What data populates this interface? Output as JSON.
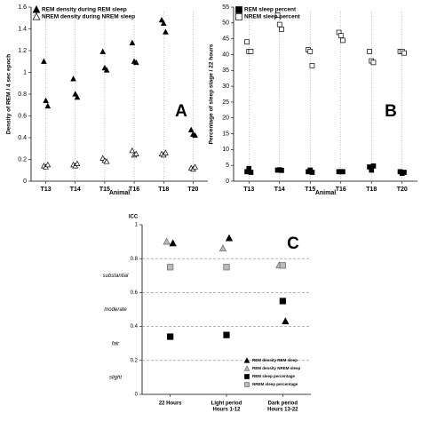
{
  "chart_data": [
    {
      "type": "scatter",
      "letter": "A",
      "y_label": "Density of REM / 4 sec epoch",
      "x_label": "Animal",
      "categories": [
        "T13",
        "T14",
        "T15",
        "T16",
        "T18",
        "T20"
      ],
      "series": [
        {
          "name": "REM density during REM sleep",
          "marker": "triangle",
          "filled": true,
          "color": "#000000",
          "values": [
            [
              1.1,
              0.74,
              0.69
            ],
            [
              0.94,
              0.8,
              0.77
            ],
            [
              1.19,
              1.04,
              1.02
            ],
            [
              1.27,
              1.1,
              1.09
            ],
            [
              1.48,
              1.45,
              1.37
            ],
            [
              0.47,
              0.43,
              0.42
            ]
          ]
        },
        {
          "name": "NREM density during NREM sleep",
          "marker": "triangle",
          "filled": false,
          "color": "#000000",
          "values": [
            [
              0.14,
              0.13,
              0.15
            ],
            [
              0.15,
              0.14,
              0.16
            ],
            [
              0.21,
              0.19,
              0.18
            ],
            [
              0.28,
              0.24,
              0.25
            ],
            [
              0.25,
              0.24,
              0.26
            ],
            [
              0.12,
              0.11,
              0.13
            ]
          ]
        }
      ],
      "ylim": [
        0,
        1.6
      ],
      "yticks": [
        0,
        0.2,
        0.4,
        0.6,
        0.8,
        1,
        1.2,
        1.4,
        1.6
      ],
      "grid": false,
      "category_lines": true,
      "legend": "upper left"
    },
    {
      "type": "scatter",
      "letter": "B",
      "y_label": "Percentage of sleep stage / 22 hours",
      "x_label": "Animal",
      "categories": [
        "T13",
        "T14",
        "T15",
        "T16",
        "T18",
        "T20"
      ],
      "series": [
        {
          "name": "REM sleep percent",
          "marker": "square",
          "filled": true,
          "color": "#000000",
          "values": [
            [
              3,
              4,
              2.8
            ],
            [
              3.5,
              3.6,
              3.4
            ],
            [
              3,
              3.5,
              2.8
            ],
            [
              3,
              3,
              3
            ],
            [
              4.5,
              3.5,
              4.8
            ],
            [
              3,
              2.5,
              2.8
            ]
          ]
        },
        {
          "name": "NREM sleep percent",
          "marker": "square",
          "filled": false,
          "color": "#000000",
          "values": [
            [
              44,
              41,
              41
            ],
            [
              52.5,
              49.5,
              48
            ],
            [
              41.5,
              41,
              36.5
            ],
            [
              47,
              46,
              44.5
            ],
            [
              41,
              38,
              37.5
            ],
            [
              41,
              41,
              40.5
            ]
          ]
        }
      ],
      "ylim": [
        0,
        55
      ],
      "yticks": [
        0,
        5,
        10,
        15,
        20,
        25,
        30,
        35,
        40,
        45,
        50,
        55
      ],
      "grid": false,
      "category_lines": true,
      "legend": "upper left"
    },
    {
      "type": "scatter",
      "letter": "C",
      "y_label": "ICC",
      "categories": [
        [
          "22 Hours"
        ],
        [
          "Light period",
          "Hours 1-12"
        ],
        [
          "Dark period",
          "Hours 13-22"
        ]
      ],
      "series": [
        {
          "name": "REM density REM sleep",
          "marker": "triangle",
          "filled": true,
          "color": "#000000",
          "values": [
            0.89,
            0.92,
            0.43
          ]
        },
        {
          "name": "REM density NREM sleep",
          "marker": "triangle",
          "filled": true,
          "color": "#bbbbbb",
          "values": [
            0.9,
            0.86,
            0.76
          ]
        },
        {
          "name": "REM sleep percentage",
          "marker": "square",
          "filled": true,
          "color": "#000000",
          "values": [
            0.34,
            0.35,
            0.55
          ]
        },
        {
          "name": "NREM sleep percentage",
          "marker": "square",
          "filled": true,
          "color": "#bbbbbb",
          "values": [
            0.75,
            0.75,
            0.76
          ]
        }
      ],
      "bands": [
        {
          "label": "slight",
          "from": 0,
          "to": 0.2
        },
        {
          "label": "fair",
          "from": 0.2,
          "to": 0.4
        },
        {
          "label": "moderate",
          "from": 0.4,
          "to": 0.6
        },
        {
          "label": "substantial",
          "from": 0.6,
          "to": 0.8
        }
      ],
      "ylim": [
        0,
        1
      ],
      "yticks": [
        0,
        0.2,
        0.4,
        0.6,
        0.8,
        1
      ],
      "grid": true,
      "category_lines": false,
      "legend": "lower right"
    }
  ]
}
